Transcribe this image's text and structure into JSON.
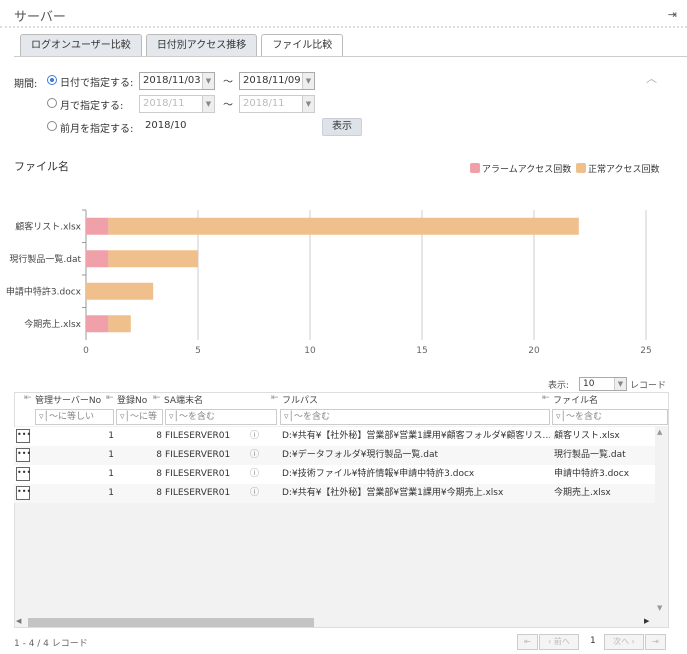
{
  "header": {
    "title": "サーバー",
    "logout_icon": "logout-icon"
  },
  "tabs": [
    {
      "label": "ログオンユーザー比較",
      "active": false
    },
    {
      "label": "日付別アクセス推移",
      "active": false
    },
    {
      "label": "ファイル比較",
      "active": true
    }
  ],
  "period": {
    "label": "期間:",
    "options": [
      {
        "label": "日付で指定する:",
        "selected": true,
        "from": "2018/11/03",
        "to": "2018/11/09"
      },
      {
        "label": "月で指定する:",
        "selected": false,
        "from": "2018/11",
        "to": "2018/11"
      },
      {
        "label": "前月を指定する:",
        "selected": false,
        "value": "2018/10"
      }
    ],
    "tilde": "～",
    "show_button": "表示"
  },
  "chart_data": {
    "type": "bar",
    "orientation": "horizontal",
    "stacked": true,
    "title": "ファイル名",
    "categories": [
      "顧客リスト.xlsx",
      "現行製品一覧.dat",
      "申請中特許3.docx",
      "今期売上.xlsx"
    ],
    "series": [
      {
        "name": "アラームアクセス回数",
        "color": "#f0a0a8",
        "values": [
          1,
          1,
          0,
          1
        ]
      },
      {
        "name": "正常アクセス回数",
        "color": "#f0c08c",
        "values": [
          21,
          4,
          3,
          1
        ]
      }
    ],
    "xlim": [
      0,
      25
    ],
    "xticks": [
      0,
      5,
      10,
      15,
      20,
      25
    ],
    "grid": true,
    "legend": "top-right"
  },
  "table": {
    "page_size_label": "表示:",
    "page_size": "10",
    "records_label": "レコード",
    "columns": [
      {
        "label": "管理サーバーNo",
        "filter": "～に等しい"
      },
      {
        "label": "登録No",
        "filter": "～に等"
      },
      {
        "label": "SA端末名",
        "filter": "～を含む"
      },
      {
        "label": "フルパス",
        "filter": "～を含む"
      },
      {
        "label": "ファイル名",
        "filter": "～を含む"
      }
    ],
    "rows": [
      {
        "server_no": "1",
        "reg_no": "8",
        "terminal": "FILESERVER01",
        "path": "D:¥共有¥【社外秘】営業部¥営業1課用¥顧客フォルダ¥顧客リス…",
        "file": "顧客リスト.xlsx"
      },
      {
        "server_no": "1",
        "reg_no": "8",
        "terminal": "FILESERVER01",
        "path": "D:¥データフォルダ¥現行製品一覧.dat",
        "file": "現行製品一覧.dat"
      },
      {
        "server_no": "1",
        "reg_no": "8",
        "terminal": "FILESERVER01",
        "path": "D:¥技術ファイル¥特許情報¥申請中特許3.docx",
        "file": "申請中特許3.docx"
      },
      {
        "server_no": "1",
        "reg_no": "8",
        "terminal": "FILESERVER01",
        "path": "D:¥共有¥【社外秘】営業部¥営業1課用¥今期売上.xlsx",
        "file": "今期売上.xlsx"
      }
    ],
    "footer": {
      "summary": "1 - 4 / 4 レコード",
      "prev": "前へ",
      "next": "次へ",
      "page": "1"
    }
  }
}
